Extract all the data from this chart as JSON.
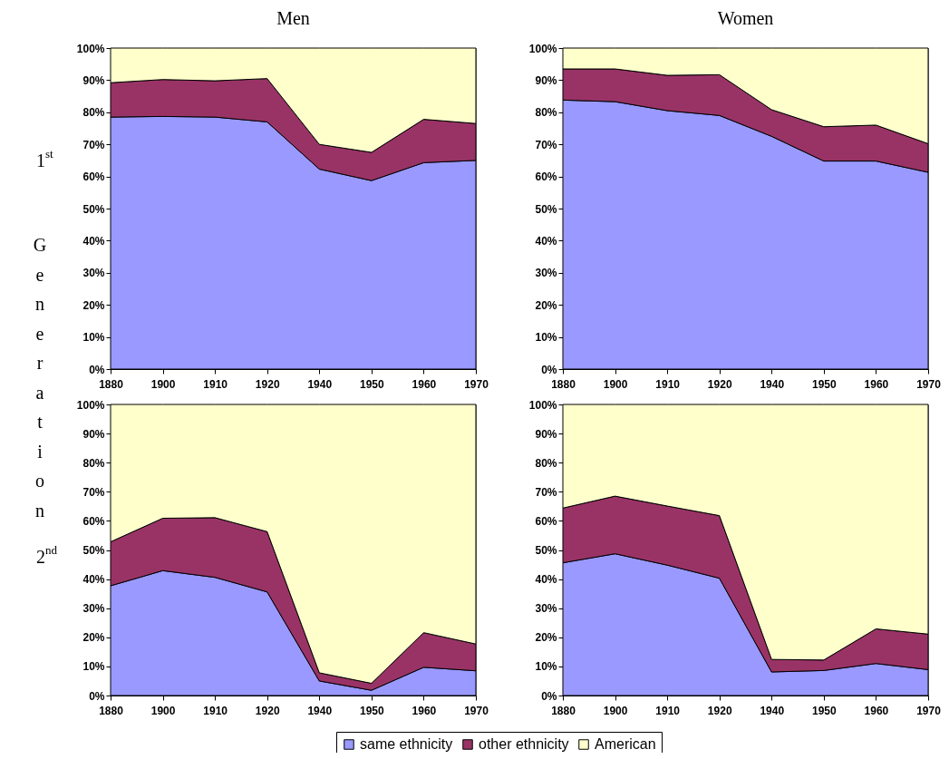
{
  "chart_data": [
    {
      "type": "area",
      "stacked": true,
      "title": "Men",
      "annotations": [
        "1$^{st}$",
        "Generation"
      ],
      "categories": [
        "1880",
        "1900",
        "1910",
        "1920",
        "1940",
        "1950",
        "1960",
        "1970"
      ],
      "ylim": [
        0,
        100
      ],
      "yticks": [
        {
          "value": 0,
          "label": "0%"
        },
        {
          "value": 10,
          "label": "10%"
        },
        {
          "value": 20,
          "label": "20%"
        },
        {
          "value": 30,
          "label": "30%"
        },
        {
          "value": 40,
          "label": "40%"
        },
        {
          "value": 50,
          "label": "50%"
        },
        {
          "value": 60,
          "label": "60%"
        },
        {
          "value": 70,
          "label": "70%"
        },
        {
          "value": 80,
          "label": "80%"
        },
        {
          "value": 90,
          "label": "90%"
        },
        {
          "value": 100,
          "label": "100%"
        }
      ],
      "series": [
        {
          "color": "#9999ff",
          "values": [
            78.5,
            78.7,
            78.5,
            77,
            62.3,
            58.7,
            64.3,
            65
          ]
        },
        {
          "color": "#993366",
          "values": [
            10.7,
            11.5,
            11.3,
            13.5,
            7.7,
            8.8,
            13.5,
            11.5
          ]
        },
        {
          "color": "#ffffcc",
          "values": [
            10.8,
            9.8,
            10.2,
            9.5,
            30,
            32.5,
            22.2,
            23.5
          ]
        }
      ]
    },
    {
      "type": "area",
      "stacked": true,
      "title": "Women",
      "categories": [
        "1880",
        "1900",
        "1910",
        "1920",
        "1940",
        "1950",
        "1960",
        "1970"
      ],
      "ylim": [
        0,
        100
      ],
      "yticks": [
        {
          "value": 0,
          "label": "0%"
        },
        {
          "value": 10,
          "label": "10%"
        },
        {
          "value": 20,
          "label": "20%"
        },
        {
          "value": 30,
          "label": "30%"
        },
        {
          "value": 40,
          "label": "40%"
        },
        {
          "value": 50,
          "label": "50%"
        },
        {
          "value": 60,
          "label": "60%"
        },
        {
          "value": 70,
          "label": "70%"
        },
        {
          "value": 80,
          "label": "80%"
        },
        {
          "value": 90,
          "label": "90%"
        },
        {
          "value": 100,
          "label": "100%"
        }
      ],
      "series": [
        {
          "color": "#9999ff",
          "values": [
            83.8,
            83.3,
            80.5,
            79,
            72.5,
            64.8,
            64.8,
            61.3
          ]
        },
        {
          "color": "#993366",
          "values": [
            9.7,
            10.2,
            11,
            12.7,
            8.3,
            10.7,
            11.2,
            8.9
          ]
        },
        {
          "color": "#ffffcc",
          "values": [
            6.5,
            6.5,
            8.5,
            8.3,
            19.2,
            24.5,
            24,
            29.8
          ]
        }
      ]
    },
    {
      "type": "area",
      "stacked": true,
      "annotations": [
        "2$^{nd}$"
      ],
      "categories": [
        "1880",
        "1900",
        "1910",
        "1920",
        "1940",
        "1950",
        "1960",
        "1970"
      ],
      "ylim": [
        0,
        100
      ],
      "yticks": [
        {
          "value": 0,
          "label": "0%"
        },
        {
          "value": 10,
          "label": "10%"
        },
        {
          "value": 20,
          "label": "20%"
        },
        {
          "value": 30,
          "label": "30%"
        },
        {
          "value": 40,
          "label": "40%"
        },
        {
          "value": 50,
          "label": "50%"
        },
        {
          "value": 60,
          "label": "60%"
        },
        {
          "value": 70,
          "label": "70%"
        },
        {
          "value": 80,
          "label": "80%"
        },
        {
          "value": 90,
          "label": "90%"
        },
        {
          "value": 100,
          "label": "100%"
        }
      ],
      "series": [
        {
          "color": "#9999ff",
          "values": [
            37.7,
            42.9,
            40.6,
            35.6,
            5,
            1.8,
            9.7,
            8.5
          ]
        },
        {
          "color": "#993366",
          "values": [
            15.1,
            18,
            20.5,
            20.7,
            2.8,
            2.4,
            11.9,
            9.2
          ]
        },
        {
          "color": "#ffffcc",
          "values": [
            47.2,
            39.1,
            38.9,
            43.7,
            92.2,
            95.8,
            78.4,
            82.3
          ]
        }
      ]
    },
    {
      "type": "area",
      "stacked": true,
      "legend": "bottom",
      "categories": [
        "1880",
        "1900",
        "1910",
        "1920",
        "1940",
        "1950",
        "1960",
        "1970"
      ],
      "ylim": [
        0,
        100
      ],
      "yticks": [
        {
          "value": 0,
          "label": "0%"
        },
        {
          "value": 10,
          "label": "10%"
        },
        {
          "value": 20,
          "label": "20%"
        },
        {
          "value": 30,
          "label": "30%"
        },
        {
          "value": 40,
          "label": "40%"
        },
        {
          "value": 50,
          "label": "50%"
        },
        {
          "value": 60,
          "label": "60%"
        },
        {
          "value": 70,
          "label": "70%"
        },
        {
          "value": 80,
          "label": "80%"
        },
        {
          "value": 90,
          "label": "90%"
        },
        {
          "value": 100,
          "label": "100%"
        }
      ],
      "series": [
        {
          "name": "same ethnicity",
          "color": "#9999ff",
          "values": [
            45.6,
            48.7,
            44.8,
            40.3,
            8.1,
            8.6,
            11,
            8.9
          ]
        },
        {
          "name": "other ethnicity",
          "color": "#993366",
          "values": [
            18.8,
            19.8,
            20.3,
            21.5,
            4.3,
            3.6,
            11.9,
            12.2
          ]
        },
        {
          "name": "American",
          "color": "#ffffcc",
          "values": [
            35.6,
            31.5,
            34.9,
            38.2,
            87.6,
            87.8,
            77.1,
            78.9
          ]
        }
      ]
    }
  ]
}
